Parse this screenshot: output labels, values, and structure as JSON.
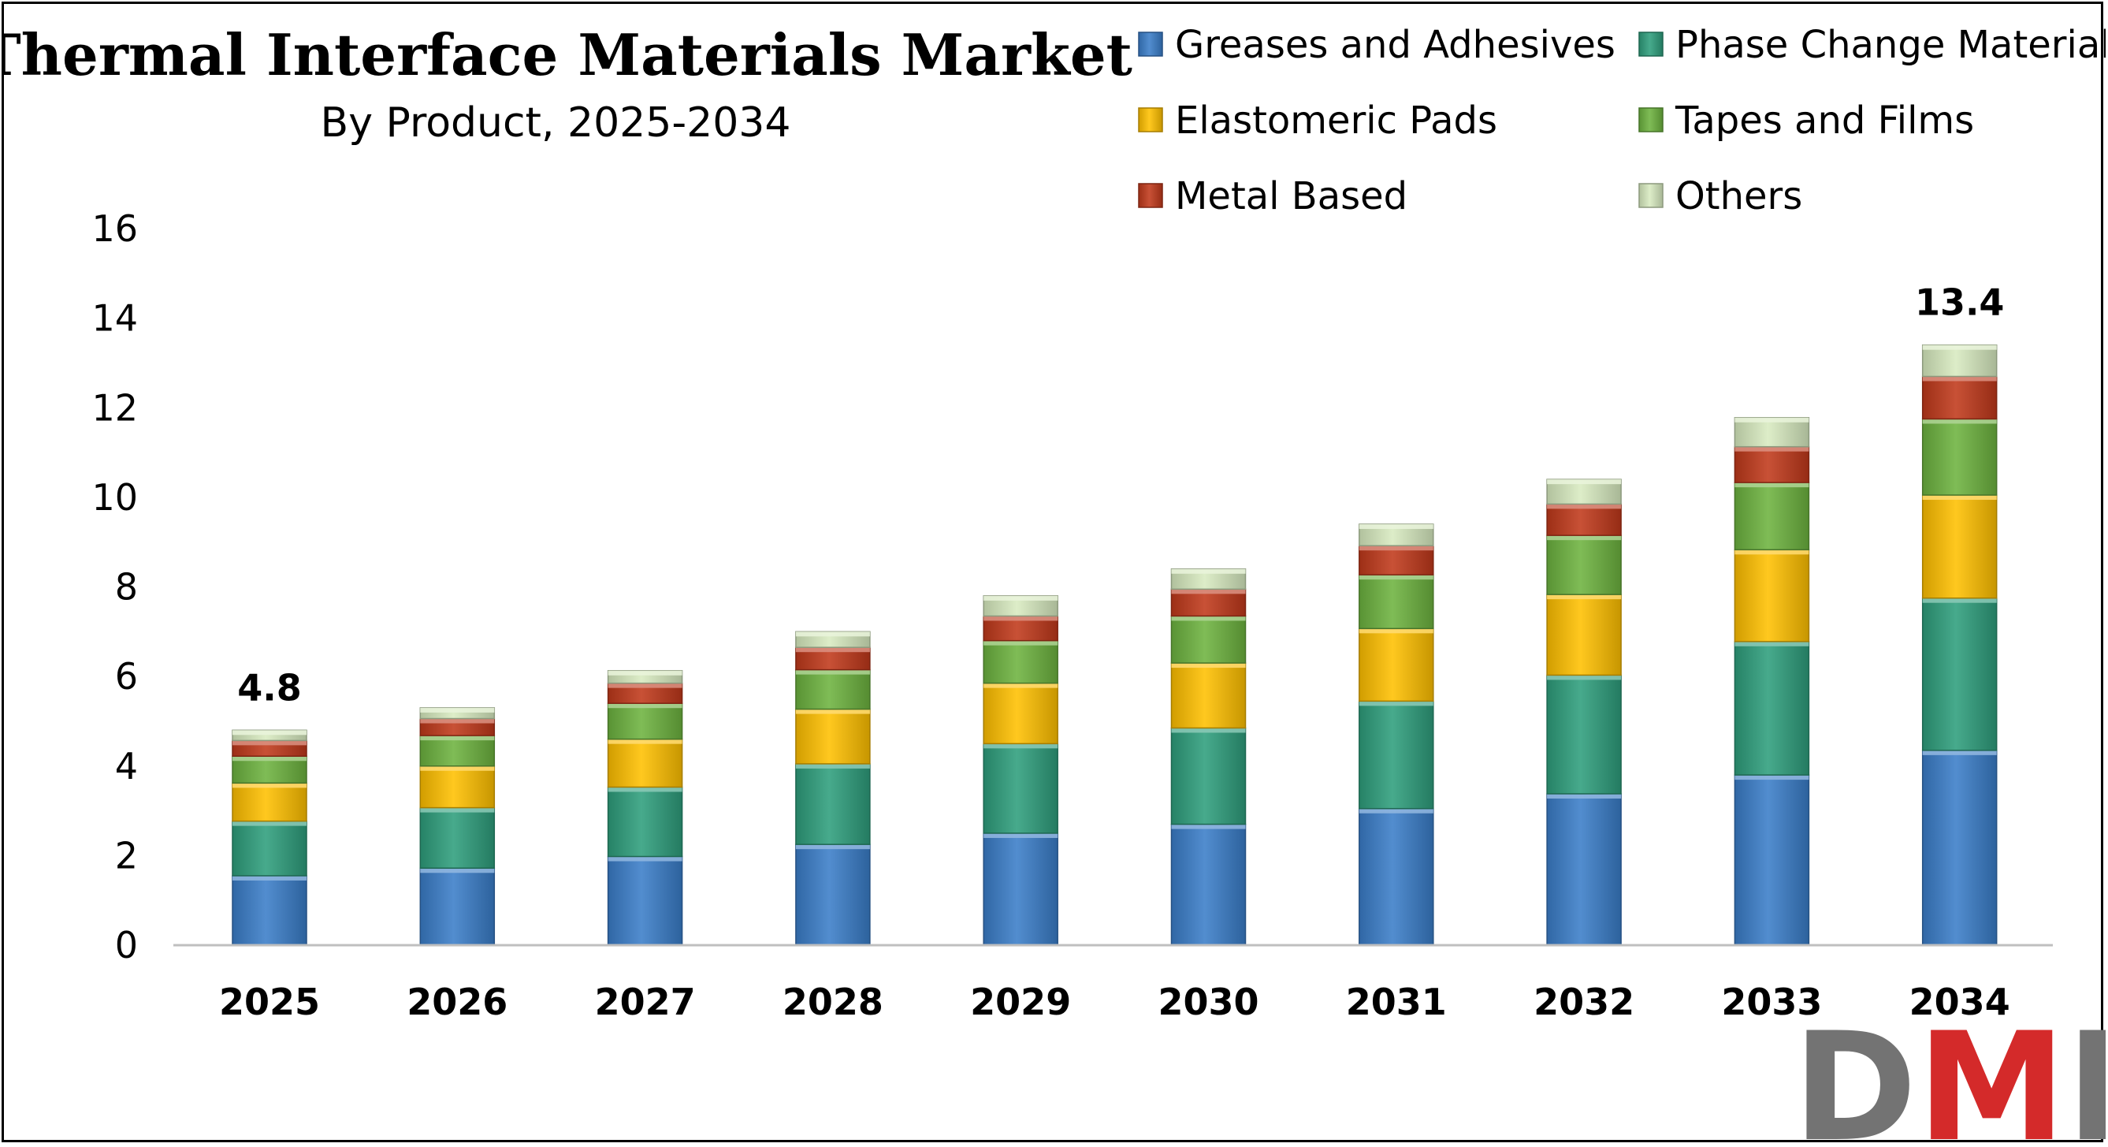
{
  "chart_data": {
    "type": "bar",
    "stacked": true,
    "title": "Thermal Interface Materials Market",
    "subtitle": "By Product, 2025-2034",
    "xlabel": "",
    "ylabel": "",
    "ylim": [
      0,
      16
    ],
    "yticks": [
      0,
      2,
      4,
      6,
      8,
      10,
      12,
      14,
      16
    ],
    "grid": false,
    "legend_position": "top-right",
    "categories": [
      "2025",
      "2026",
      "2027",
      "2028",
      "2029",
      "2030",
      "2031",
      "2032",
      "2033",
      "2034"
    ],
    "series": [
      {
        "name": "Greases and Adhesives",
        "color": "#3A7DC9",
        "values": [
          1.55,
          1.72,
          1.98,
          2.25,
          2.5,
          2.7,
          3.05,
          3.38,
          3.8,
          4.35
        ]
      },
      {
        "name": "Phase Change Materials",
        "color": "#2E9E7C",
        "values": [
          1.22,
          1.35,
          1.55,
          1.8,
          2.0,
          2.15,
          2.4,
          2.65,
          2.98,
          3.4
        ]
      },
      {
        "name": "Elastomeric Pads",
        "color": "#FFC000",
        "values": [
          0.85,
          0.93,
          1.07,
          1.22,
          1.35,
          1.45,
          1.62,
          1.8,
          2.05,
          2.3
        ]
      },
      {
        "name": "Tapes and Films",
        "color": "#6DB33F",
        "values": [
          0.6,
          0.68,
          0.8,
          0.88,
          0.95,
          1.05,
          1.2,
          1.32,
          1.5,
          1.7
        ]
      },
      {
        "name": "Metal Based",
        "color": "#C0391B",
        "values": [
          0.35,
          0.38,
          0.45,
          0.5,
          0.55,
          0.6,
          0.65,
          0.7,
          0.8,
          0.95
        ]
      },
      {
        "name": "Others",
        "color": "#D8EBC0",
        "values": [
          0.23,
          0.24,
          0.28,
          0.35,
          0.45,
          0.45,
          0.48,
          0.55,
          0.65,
          0.7
        ]
      }
    ],
    "data_labels": [
      {
        "category": "2025",
        "text": "4.8"
      },
      {
        "category": "2034",
        "text": "13.4"
      }
    ]
  },
  "logo": {
    "text": "DMR",
    "colors": [
      "#737373",
      "#D42A2A",
      "#737373"
    ]
  }
}
